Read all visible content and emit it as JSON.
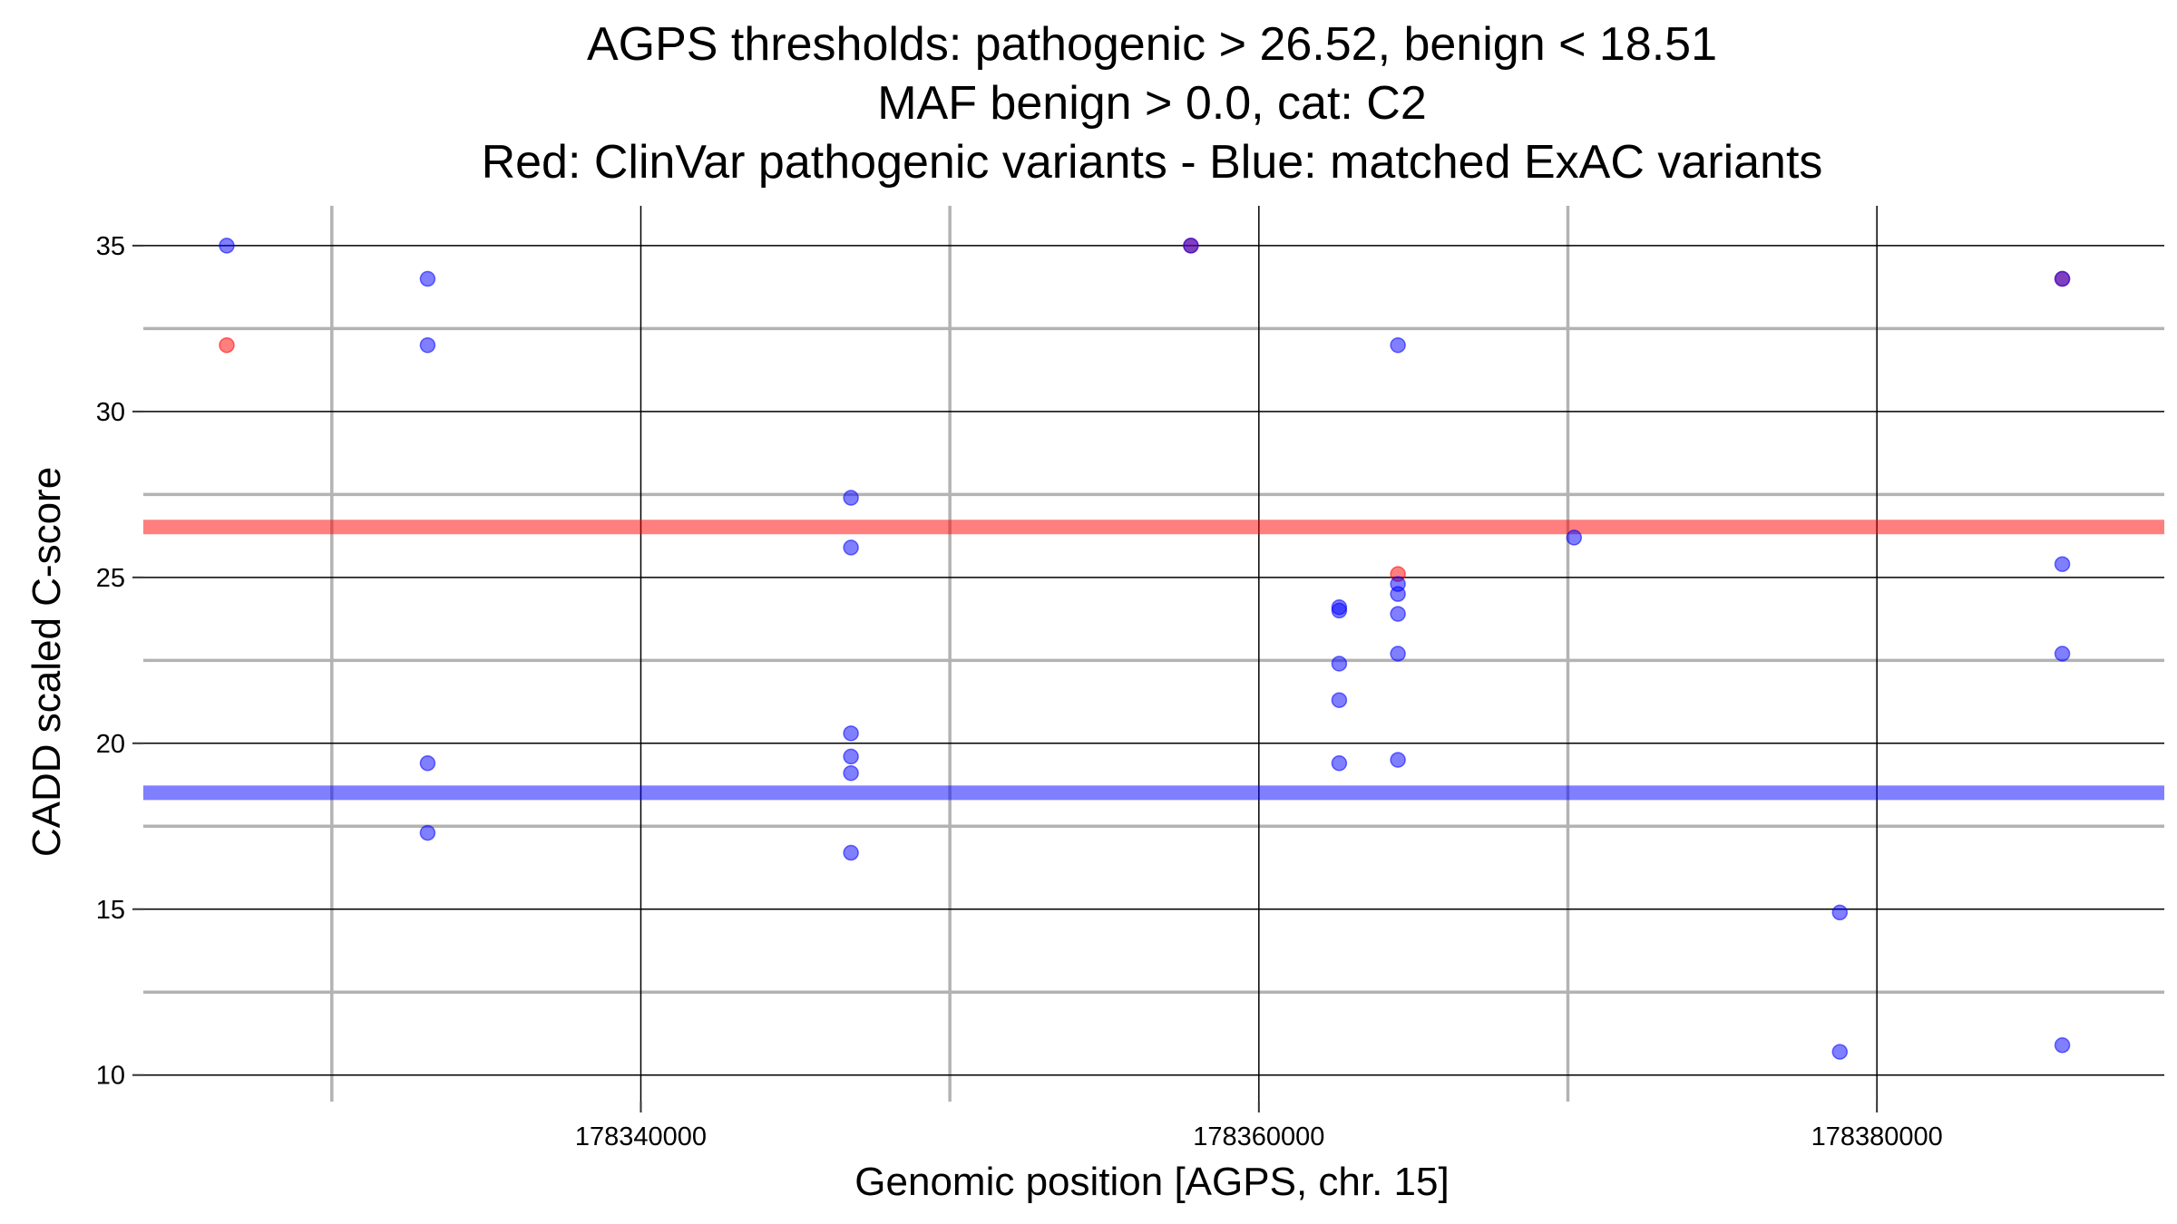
{
  "chart_data": {
    "type": "scatter",
    "title_lines": [
      "AGPS thresholds: pathogenic > 26.52, benign < 18.51",
      "MAF benign > 0.0, cat: C2",
      "Red: ClinVar pathogenic variants - Blue: matched ExAC variants"
    ],
    "xlabel": "Genomic position [AGPS, chr. 15]",
    "ylabel": "CADD scaled C-score",
    "xlim": [
      178323900,
      178389300
    ],
    "ylim": [
      9.2,
      36.2
    ],
    "x_ticks": [
      178340000,
      178360000,
      178380000
    ],
    "x_tick_labels": [
      "178340000",
      "178360000",
      "178380000"
    ],
    "x_minor_grid": [
      178330000,
      178350000,
      178370000
    ],
    "y_ticks": [
      10,
      15,
      20,
      25,
      30,
      35
    ],
    "y_tick_labels": [
      "10",
      "15",
      "20",
      "25",
      "30",
      "35"
    ],
    "y_minor_grid": [
      12.5,
      17.5,
      22.5,
      27.5,
      32.5
    ],
    "thresholds": [
      {
        "name": "pathogenic",
        "value": 26.52,
        "color": "#ff0000"
      },
      {
        "name": "benign",
        "value": 18.51,
        "color": "#0000ff"
      }
    ],
    "series": [
      {
        "color": "#ff0000",
        "points": [
          {
            "x": 178326600,
            "y": 32.0
          },
          {
            "x": 178357800,
            "y": 35.0
          },
          {
            "x": 178364500,
            "y": 25.1
          },
          {
            "x": 178386000,
            "y": 34.0
          }
        ]
      },
      {
        "color": "#0000ff",
        "points": [
          {
            "x": 178326600,
            "y": 35.0
          },
          {
            "x": 178333100,
            "y": 34.0
          },
          {
            "x": 178333100,
            "y": 32.0
          },
          {
            "x": 178333100,
            "y": 19.4
          },
          {
            "x": 178333100,
            "y": 17.3
          },
          {
            "x": 178346800,
            "y": 27.4
          },
          {
            "x": 178346800,
            "y": 25.9
          },
          {
            "x": 178346800,
            "y": 20.3
          },
          {
            "x": 178346800,
            "y": 19.6
          },
          {
            "x": 178346800,
            "y": 19.1
          },
          {
            "x": 178346800,
            "y": 16.7
          },
          {
            "x": 178357800,
            "y": 35.0
          },
          {
            "x": 178362600,
            "y": 24.1
          },
          {
            "x": 178362600,
            "y": 24.0
          },
          {
            "x": 178362600,
            "y": 22.4
          },
          {
            "x": 178362600,
            "y": 21.3
          },
          {
            "x": 178362600,
            "y": 19.4
          },
          {
            "x": 178364500,
            "y": 32.0
          },
          {
            "x": 178364500,
            "y": 24.8
          },
          {
            "x": 178364500,
            "y": 24.5
          },
          {
            "x": 178364500,
            "y": 23.9
          },
          {
            "x": 178364500,
            "y": 22.7
          },
          {
            "x": 178364500,
            "y": 19.5
          },
          {
            "x": 178370200,
            "y": 26.2
          },
          {
            "x": 178378800,
            "y": 14.9
          },
          {
            "x": 178378800,
            "y": 10.7
          },
          {
            "x": 178386000,
            "y": 34.0
          },
          {
            "x": 178386000,
            "y": 25.4
          },
          {
            "x": 178386000,
            "y": 22.7
          },
          {
            "x": 178386000,
            "y": 10.9
          }
        ]
      }
    ]
  }
}
